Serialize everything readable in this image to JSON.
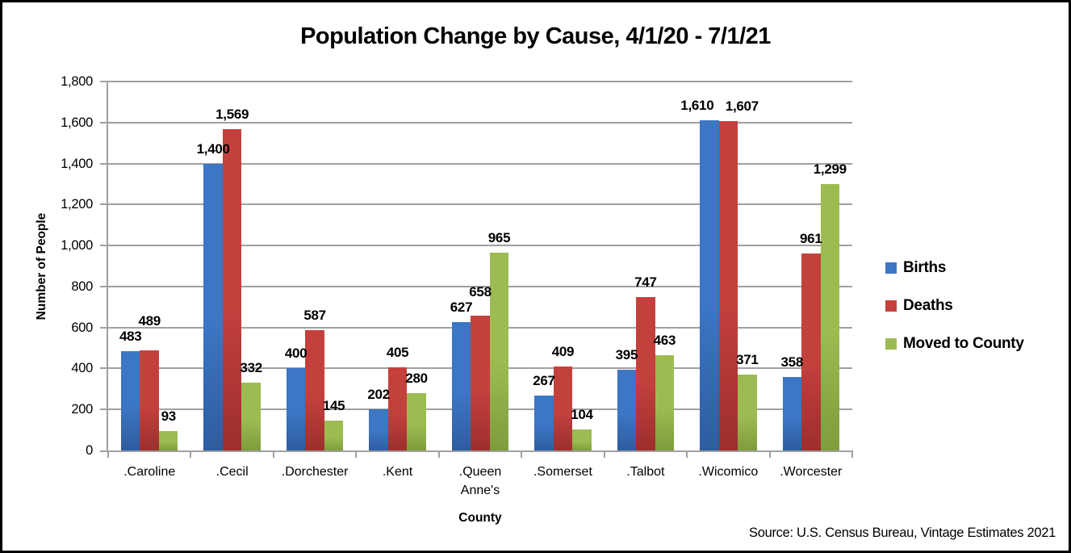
{
  "chart_data": {
    "type": "bar",
    "title": "Population Change by Cause, 4/1/20 - 7/1/21",
    "xlabel": "County",
    "ylabel": "Number of People",
    "ylim": [
      0,
      1800
    ],
    "ytick_step": 200,
    "ytick_labels": [
      "0",
      "200",
      "400",
      "600",
      "800",
      "1,000",
      "1,200",
      "1,400",
      "1,600",
      "1,800"
    ],
    "grid": true,
    "legend_position": "middle-right",
    "categories": [
      ".Caroline",
      ".Cecil",
      ".Dorchester",
      ".Kent",
      ".Queen Anne's",
      ".Somerset",
      ".Talbot",
      ".Wicomico",
      ".Worcester"
    ],
    "series": [
      {
        "name": "Births",
        "color": "#3c76c5",
        "color_dark": "#2e5d9f",
        "values": [
          483,
          1400,
          400,
          202,
          627,
          267,
          395,
          1610,
          358
        ]
      },
      {
        "name": "Deaths",
        "color": "#c4403d",
        "color_dark": "#9c2f2d",
        "values": [
          489,
          1569,
          587,
          405,
          658,
          409,
          747,
          1607,
          961
        ]
      },
      {
        "name": "Moved to County",
        "color": "#9cbc52",
        "color_dark": "#7e9c3c",
        "values": [
          93,
          332,
          145,
          280,
          965,
          104,
          463,
          371,
          1299
        ]
      }
    ],
    "data_labels": true,
    "axis_color": "#a0a0a0",
    "source": "Source: U.S. Census Bureau, Vintage Estimates 2021"
  }
}
